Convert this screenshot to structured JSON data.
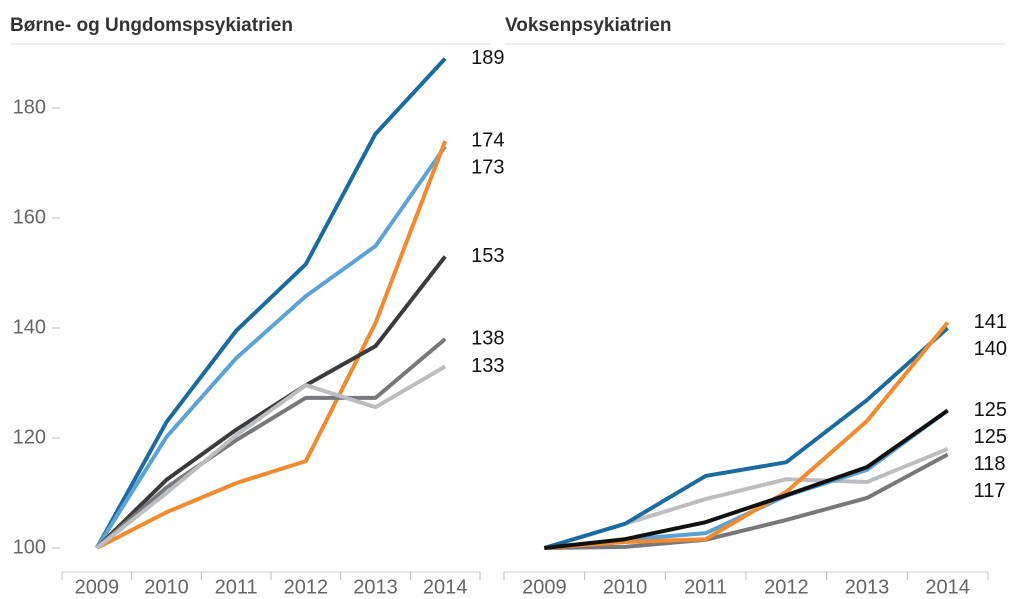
{
  "chart_data": [
    {
      "type": "line",
      "title": "Børne- og Ungdomspsykiatrien",
      "categories": [
        "2009",
        "2010",
        "2011",
        "2012",
        "2013",
        "2014"
      ],
      "ylim": [
        96,
        192
      ],
      "yticks": [
        100,
        120,
        140,
        160,
        180
      ],
      "series": [
        {
          "color": "#1b6b9f",
          "values": [
            100,
            122.9,
            139.5,
            151.6,
            175.3,
            189
          ]
        },
        {
          "color": "#5da2d6",
          "values": [
            100,
            120.2,
            134.5,
            145.8,
            154.9,
            173
          ]
        },
        {
          "color": "#f28a30",
          "values": [
            100,
            106.5,
            111.8,
            115.8,
            140.9,
            174
          ]
        },
        {
          "color": "#3b3b3b",
          "values": [
            100,
            112.4,
            121.5,
            129.6,
            136.7,
            153
          ]
        },
        {
          "color": "#77787b",
          "values": [
            100,
            111,
            119.6,
            127.3,
            127.3,
            138
          ]
        },
        {
          "color": "#bcbdc0",
          "values": [
            100,
            110,
            120.5,
            129.6,
            125.6,
            133
          ]
        }
      ]
    },
    {
      "type": "line",
      "title": "Voksenpsykiatrien",
      "categories": [
        "2009",
        "2010",
        "2011",
        "2012",
        "2013",
        "2014"
      ],
      "ylim": [
        96,
        192
      ],
      "series": [
        {
          "color": "#bcbdc0",
          "values": [
            100,
            104.4,
            108.9,
            112.5,
            112,
            118
          ]
        },
        {
          "color": "#77787b",
          "values": [
            100,
            100.2,
            101.5,
            105.1,
            109.1,
            117
          ]
        },
        {
          "color": "#5da2d6",
          "values": [
            100,
            101.5,
            102.7,
            109.5,
            114.2,
            125
          ]
        },
        {
          "color": "#1b6b9f",
          "values": [
            100,
            104.4,
            113.1,
            115.6,
            126.9,
            140
          ]
        },
        {
          "color": "#f28a30",
          "values": [
            100,
            101.1,
            101.6,
            110.2,
            123.1,
            141
          ]
        },
        {
          "color": "#111111",
          "values": [
            100,
            101.6,
            104.7,
            109.6,
            114.7,
            125
          ]
        }
      ]
    }
  ]
}
